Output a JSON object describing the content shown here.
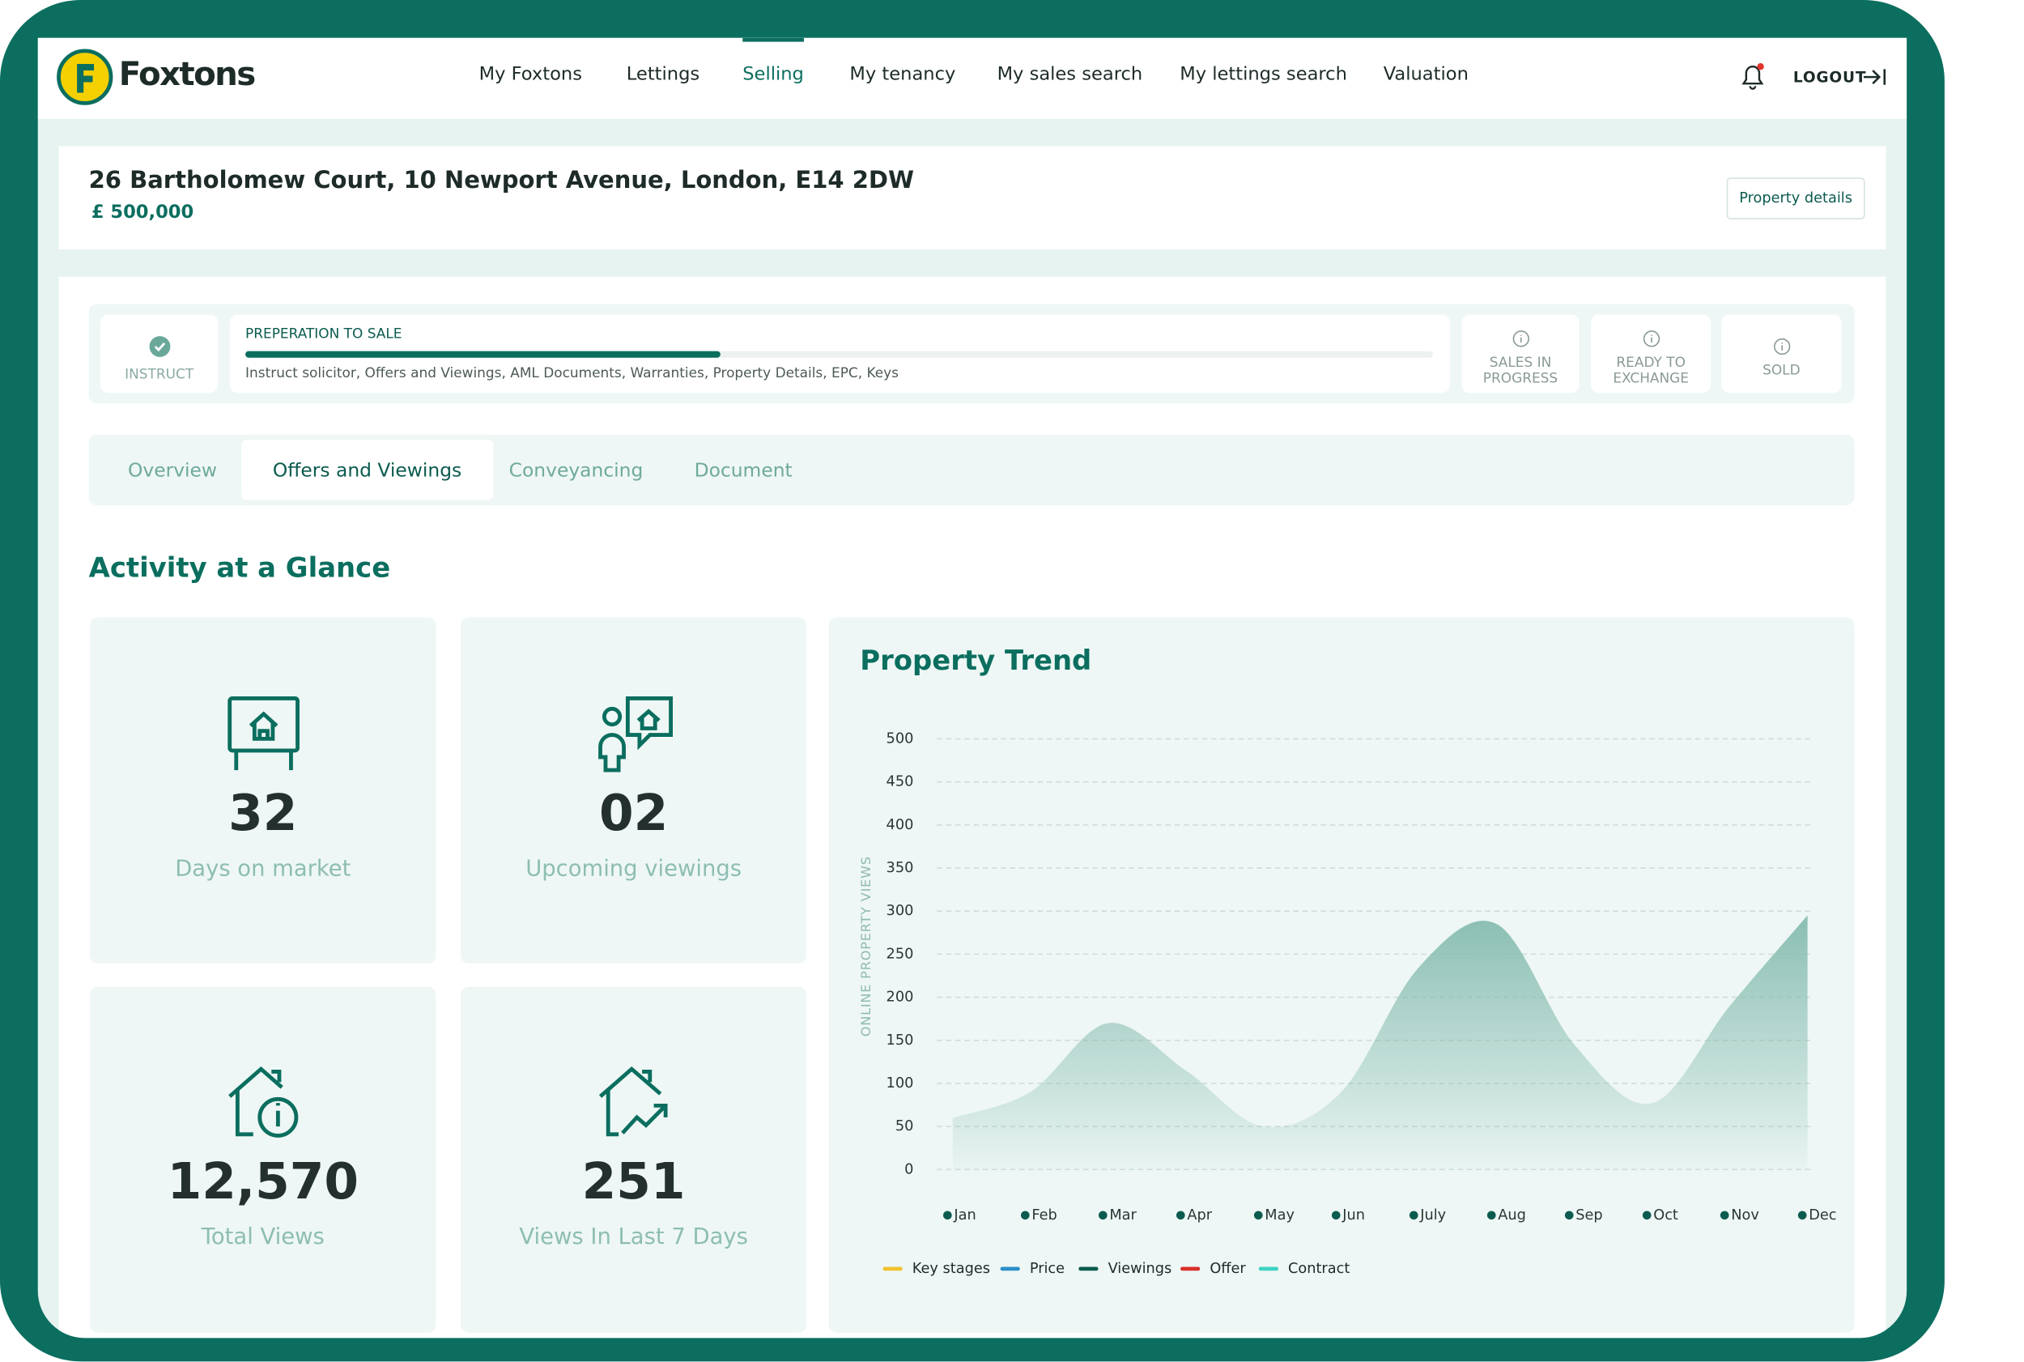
{
  "nav": {
    "brand": "Foxtons",
    "items": [
      "My Foxtons",
      "Lettings",
      "Selling",
      "My tenancy",
      "My sales search",
      "My lettings search",
      "Valuation"
    ],
    "active": 2,
    "logout": "LOGOUT"
  },
  "property": {
    "address": "26 Bartholomew Court, 10 Newport Avenue, London, E14 2DW",
    "price": "£ 500,000",
    "button": "Property details"
  },
  "stages": {
    "instruct": "INSTRUCT",
    "current": {
      "title": "PREPERATION TO SALE",
      "detail": "Instruct solicitor, Offers and Viewings, AML Documents, Warranties, Property Details, EPC, Keys",
      "progress": 40
    },
    "next": [
      "SALES IN PROGRESS",
      "READY TO EXCHANGE",
      "SOLD"
    ]
  },
  "tabs": {
    "items": [
      "Overview",
      "Offers and Viewings",
      "Conveyancing",
      "Document"
    ],
    "active": 1
  },
  "section_title": "Activity at a Glance",
  "stats": [
    {
      "value": "32",
      "label": "Days on market"
    },
    {
      "value": "02",
      "label": "Upcoming viewings"
    },
    {
      "value": "12,570",
      "label": "Total Views"
    },
    {
      "value": "251",
      "label": "Views In Last 7 Days"
    }
  ],
  "chart_data": {
    "type": "area",
    "title": "Property Trend",
    "ylabel": "ONLINE PROPERTY VIEWS",
    "categories": [
      "Jan",
      "Feb",
      "Mar",
      "Apr",
      "May",
      "Jun",
      "July",
      "Aug",
      "Sep",
      "Oct",
      "Nov",
      "Dec"
    ],
    "values": [
      60,
      90,
      170,
      115,
      50,
      90,
      235,
      285,
      145,
      77,
      190,
      295
    ],
    "color": "#7fb8ab",
    "ylim": [
      0,
      500
    ],
    "yticks": [
      0,
      50,
      100,
      150,
      200,
      250,
      300,
      350,
      400,
      450,
      500
    ],
    "grid": true,
    "legend": [
      {
        "name": "Key stages",
        "color": "#f2c12e"
      },
      {
        "name": "Price",
        "color": "#2a8fc9"
      },
      {
        "name": "Viewings",
        "color": "#0b5b4f"
      },
      {
        "name": "Offer",
        "color": "#d8312a"
      },
      {
        "name": "Contract",
        "color": "#3fd3c3"
      }
    ]
  }
}
